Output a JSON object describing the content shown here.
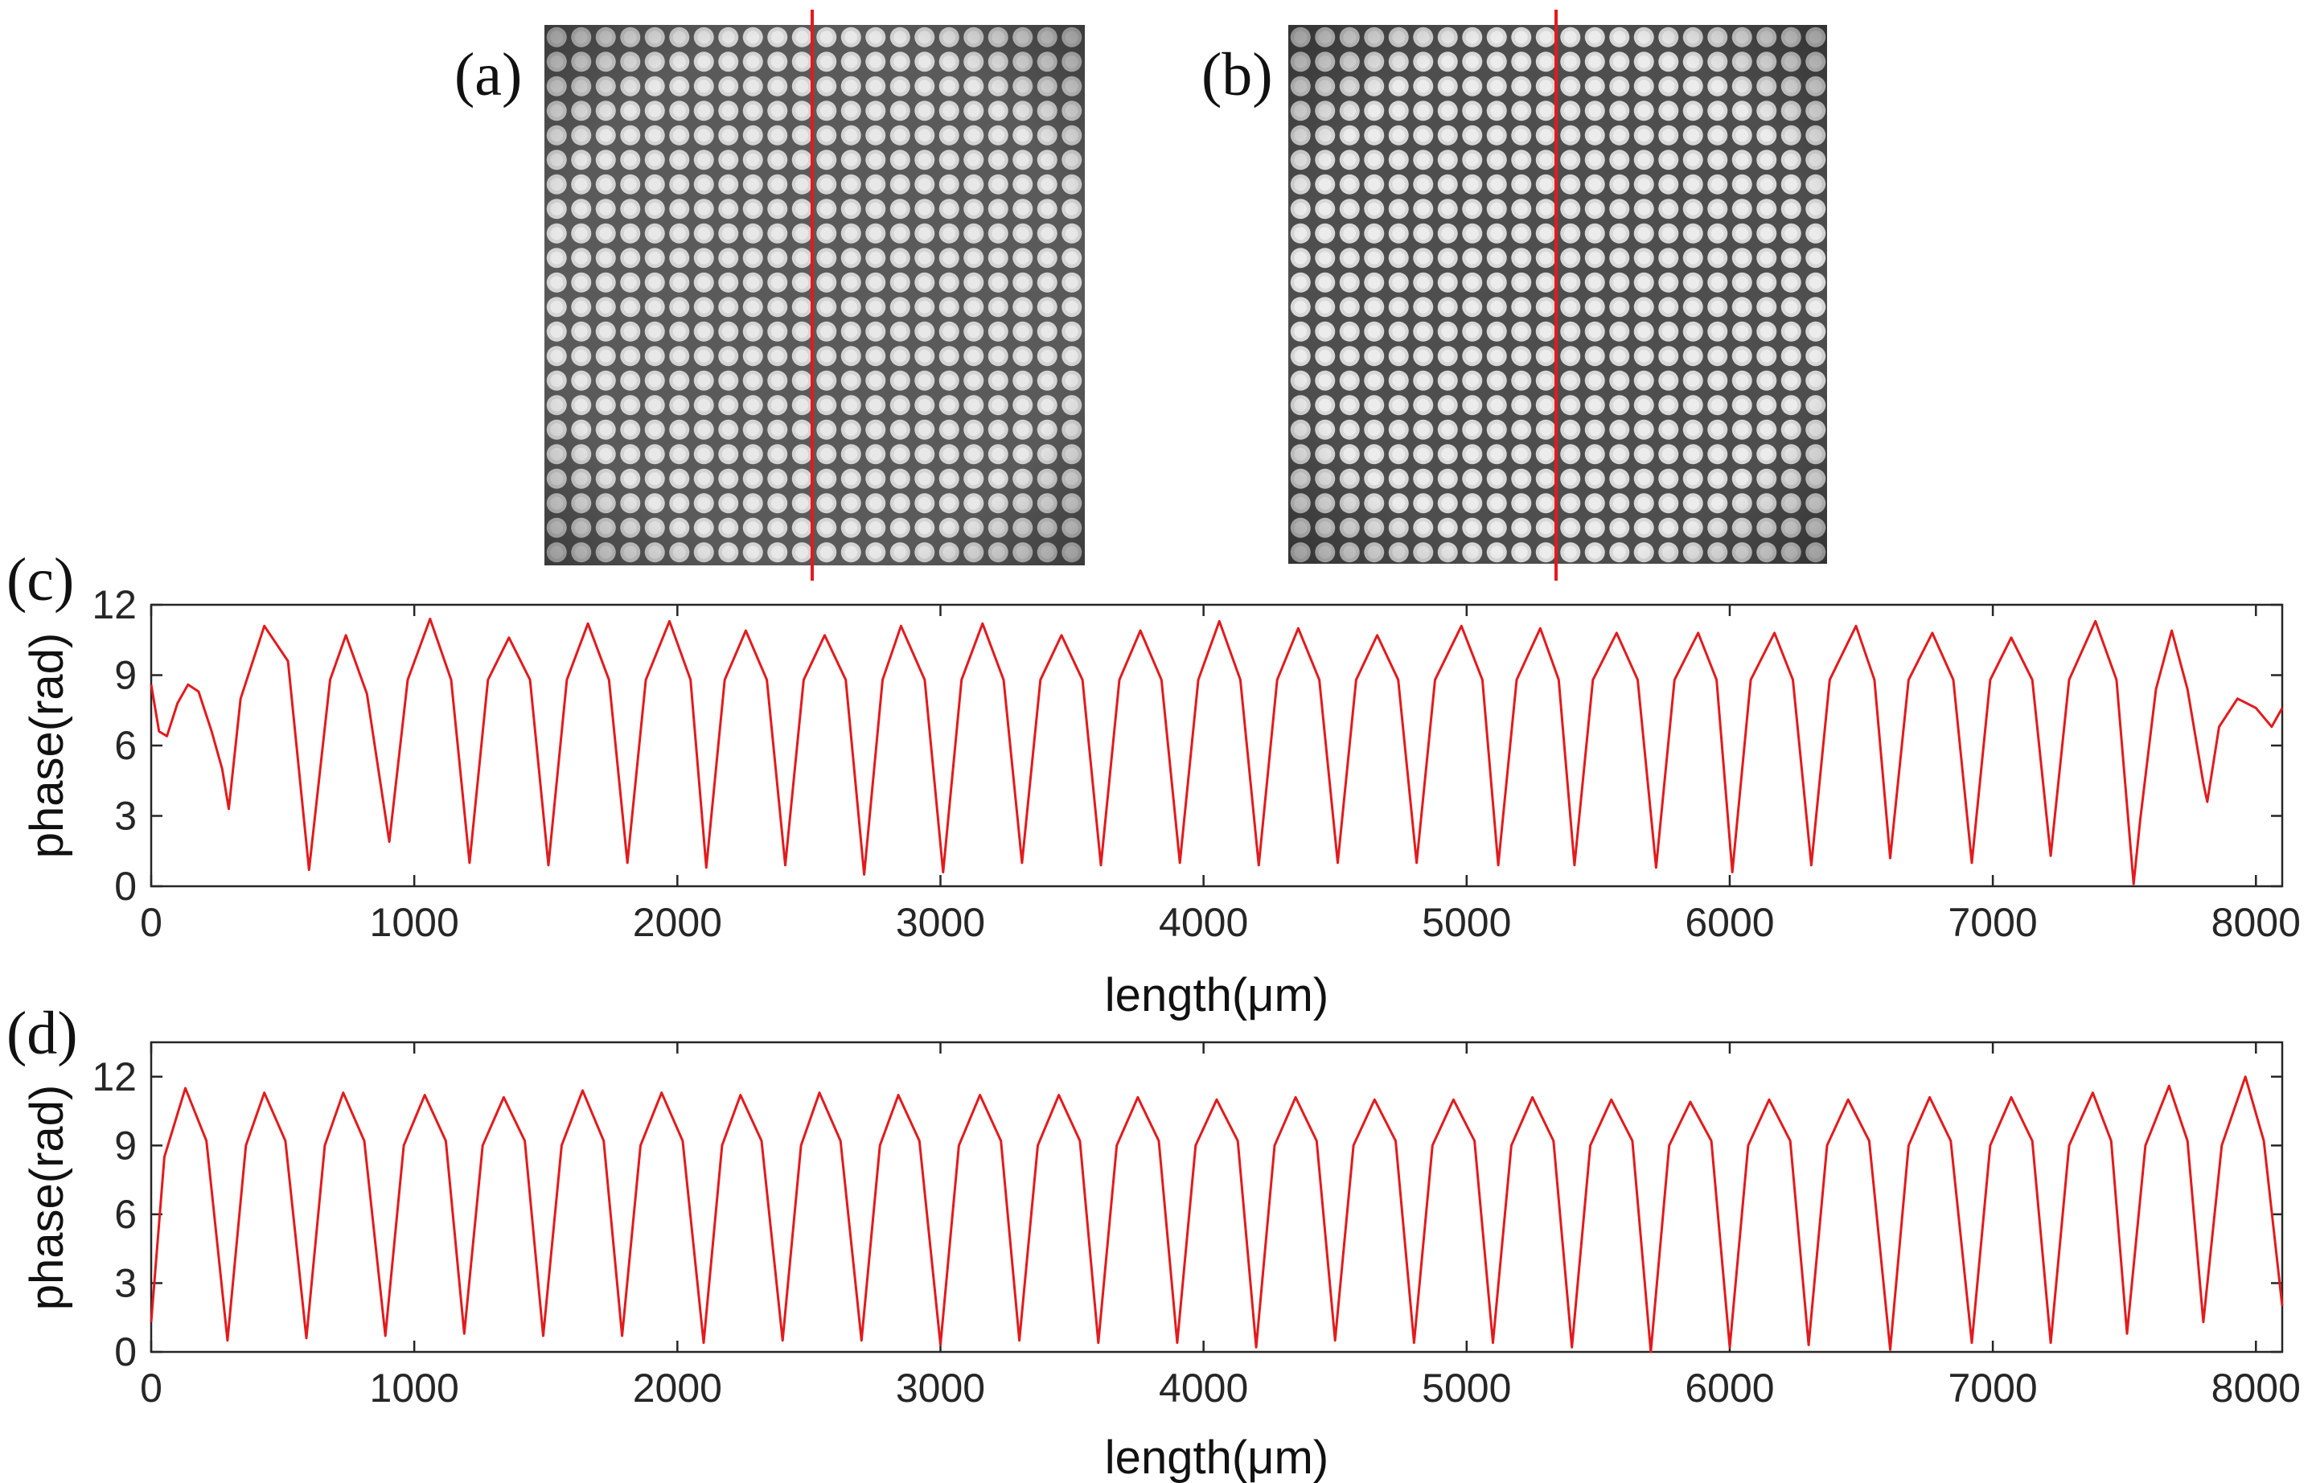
{
  "panels": {
    "a": "(a)",
    "b": "(b)",
    "c": "(c)",
    "d": "(d)"
  },
  "colors": {
    "trace": "#e31a1c",
    "axis": "#262626",
    "cut_line": "#e31a1c"
  },
  "images": [
    {
      "panel": "a",
      "description": "grayscale microlens array image with vertical red cut line",
      "grid_cells": 22
    },
    {
      "panel": "b",
      "description": "grayscale microlens array image with vertical red cut line",
      "grid_cells": 22
    }
  ],
  "chart_data": [
    {
      "panel": "c",
      "type": "line",
      "title": "",
      "xlabel": "length(μm)",
      "ylabel": "phase(rad)",
      "xlim": [
        0,
        8100
      ],
      "ylim": [
        0,
        12
      ],
      "xticks": [
        "0",
        "1000",
        "2000",
        "3000",
        "4000",
        "5000",
        "6000",
        "7000",
        "8000"
      ],
      "yticks": [
        "0",
        "3",
        "6",
        "9",
        "12"
      ],
      "series": [
        {
          "name": "phase",
          "points": [
            [
              0,
              8.6
            ],
            [
              30,
              6.6
            ],
            [
              60,
              6.4
            ],
            [
              100,
              7.8
            ],
            [
              140,
              8.6
            ],
            [
              180,
              8.3
            ],
            [
              230,
              6.6
            ],
            [
              270,
              5.0
            ],
            [
              295,
              3.3
            ],
            [
              340,
              8.0
            ],
            [
              430,
              11.1
            ],
            [
              520,
              9.6
            ],
            [
              600,
              0.7
            ],
            [
              680,
              8.8
            ],
            [
              740,
              10.7
            ],
            [
              820,
              8.2
            ],
            [
              905,
              1.9
            ],
            [
              975,
              8.8
            ],
            [
              1060,
              11.4
            ],
            [
              1140,
              8.8
            ],
            [
              1210,
              1.0
            ],
            [
              1280,
              8.8
            ],
            [
              1360,
              10.6
            ],
            [
              1440,
              8.8
            ],
            [
              1510,
              0.9
            ],
            [
              1580,
              8.8
            ],
            [
              1660,
              11.2
            ],
            [
              1740,
              8.8
            ],
            [
              1810,
              1.0
            ],
            [
              1880,
              8.8
            ],
            [
              1970,
              11.3
            ],
            [
              2050,
              8.8
            ],
            [
              2110,
              0.8
            ],
            [
              2180,
              8.8
            ],
            [
              2260,
              10.9
            ],
            [
              2340,
              8.8
            ],
            [
              2410,
              0.9
            ],
            [
              2480,
              8.8
            ],
            [
              2560,
              10.7
            ],
            [
              2640,
              8.8
            ],
            [
              2710,
              0.5
            ],
            [
              2780,
              8.8
            ],
            [
              2850,
              11.1
            ],
            [
              2940,
              8.8
            ],
            [
              3010,
              0.6
            ],
            [
              3080,
              8.8
            ],
            [
              3160,
              11.2
            ],
            [
              3240,
              8.8
            ],
            [
              3310,
              1.0
            ],
            [
              3380,
              8.8
            ],
            [
              3460,
              10.7
            ],
            [
              3540,
              8.8
            ],
            [
              3610,
              0.9
            ],
            [
              3680,
              8.8
            ],
            [
              3760,
              10.9
            ],
            [
              3840,
              8.8
            ],
            [
              3910,
              1.0
            ],
            [
              3980,
              8.8
            ],
            [
              4060,
              11.3
            ],
            [
              4140,
              8.8
            ],
            [
              4210,
              0.9
            ],
            [
              4280,
              8.8
            ],
            [
              4360,
              11.0
            ],
            [
              4440,
              8.8
            ],
            [
              4510,
              1.0
            ],
            [
              4580,
              8.8
            ],
            [
              4660,
              10.7
            ],
            [
              4740,
              8.8
            ],
            [
              4810,
              1.0
            ],
            [
              4880,
              8.8
            ],
            [
              4980,
              11.1
            ],
            [
              5060,
              8.8
            ],
            [
              5120,
              0.9
            ],
            [
              5190,
              8.8
            ],
            [
              5280,
              11.0
            ],
            [
              5350,
              8.8
            ],
            [
              5410,
              0.9
            ],
            [
              5480,
              8.8
            ],
            [
              5570,
              10.8
            ],
            [
              5650,
              8.8
            ],
            [
              5720,
              0.8
            ],
            [
              5790,
              8.8
            ],
            [
              5880,
              10.8
            ],
            [
              5950,
              8.8
            ],
            [
              6010,
              0.6
            ],
            [
              6080,
              8.8
            ],
            [
              6170,
              10.8
            ],
            [
              6240,
              8.8
            ],
            [
              6310,
              0.9
            ],
            [
              6380,
              8.8
            ],
            [
              6480,
              11.1
            ],
            [
              6550,
              8.8
            ],
            [
              6610,
              1.2
            ],
            [
              6680,
              8.8
            ],
            [
              6770,
              10.8
            ],
            [
              6850,
              8.8
            ],
            [
              6920,
              1.0
            ],
            [
              6990,
              8.8
            ],
            [
              7070,
              10.6
            ],
            [
              7150,
              8.8
            ],
            [
              7220,
              1.3
            ],
            [
              7290,
              8.8
            ],
            [
              7390,
              11.3
            ],
            [
              7470,
              8.8
            ],
            [
              7535,
              0.1
            ],
            [
              7560,
              2.8
            ],
            [
              7620,
              8.4
            ],
            [
              7680,
              10.9
            ],
            [
              7740,
              8.4
            ],
            [
              7800,
              4.4
            ],
            [
              7815,
              3.6
            ],
            [
              7860,
              6.8
            ],
            [
              7930,
              8.0
            ],
            [
              8000,
              7.6
            ],
            [
              8060,
              6.8
            ],
            [
              8100,
              7.6
            ]
          ]
        }
      ]
    },
    {
      "panel": "d",
      "type": "line",
      "title": "",
      "xlabel": "length(μm)",
      "ylabel": "phase(rad)",
      "xlim": [
        0,
        8100
      ],
      "ylim": [
        0,
        13.5
      ],
      "xticks": [
        "0",
        "1000",
        "2000",
        "3000",
        "4000",
        "5000",
        "6000",
        "7000",
        "8000"
      ],
      "yticks": [
        "0",
        "3",
        "6",
        "9",
        "12"
      ],
      "series": [
        {
          "name": "phase",
          "points": [
            [
              0,
              1.3
            ],
            [
              50,
              8.5
            ],
            [
              130,
              11.5
            ],
            [
              210,
              9.2
            ],
            [
              290,
              0.5
            ],
            [
              360,
              9.0
            ],
            [
              430,
              11.3
            ],
            [
              510,
              9.2
            ],
            [
              590,
              0.6
            ],
            [
              660,
              9.0
            ],
            [
              730,
              11.3
            ],
            [
              810,
              9.2
            ],
            [
              890,
              0.7
            ],
            [
              960,
              9.0
            ],
            [
              1040,
              11.2
            ],
            [
              1120,
              9.2
            ],
            [
              1190,
              0.8
            ],
            [
              1260,
              9.0
            ],
            [
              1340,
              11.1
            ],
            [
              1420,
              9.2
            ],
            [
              1490,
              0.7
            ],
            [
              1560,
              9.0
            ],
            [
              1640,
              11.4
            ],
            [
              1720,
              9.2
            ],
            [
              1790,
              0.7
            ],
            [
              1860,
              9.0
            ],
            [
              1940,
              11.3
            ],
            [
              2020,
              9.2
            ],
            [
              2100,
              0.4
            ],
            [
              2170,
              9.0
            ],
            [
              2240,
              11.2
            ],
            [
              2320,
              9.2
            ],
            [
              2400,
              0.5
            ],
            [
              2470,
              9.0
            ],
            [
              2540,
              11.3
            ],
            [
              2620,
              9.2
            ],
            [
              2700,
              0.5
            ],
            [
              2770,
              9.0
            ],
            [
              2840,
              11.2
            ],
            [
              2920,
              9.2
            ],
            [
              3000,
              0.3
            ],
            [
              3070,
              9.0
            ],
            [
              3150,
              11.2
            ],
            [
              3230,
              9.2
            ],
            [
              3300,
              0.5
            ],
            [
              3370,
              9.0
            ],
            [
              3450,
              11.2
            ],
            [
              3530,
              9.2
            ],
            [
              3600,
              0.4
            ],
            [
              3670,
              9.0
            ],
            [
              3750,
              11.1
            ],
            [
              3830,
              9.2
            ],
            [
              3900,
              0.4
            ],
            [
              3970,
              9.0
            ],
            [
              4050,
              11.0
            ],
            [
              4130,
              9.2
            ],
            [
              4200,
              0.2
            ],
            [
              4270,
              9.0
            ],
            [
              4350,
              11.1
            ],
            [
              4430,
              9.2
            ],
            [
              4500,
              0.5
            ],
            [
              4570,
              9.0
            ],
            [
              4650,
              11.0
            ],
            [
              4730,
              9.2
            ],
            [
              4800,
              0.4
            ],
            [
              4870,
              9.0
            ],
            [
              4950,
              11.0
            ],
            [
              5030,
              9.2
            ],
            [
              5100,
              0.4
            ],
            [
              5170,
              9.0
            ],
            [
              5250,
              11.1
            ],
            [
              5330,
              9.2
            ],
            [
              5400,
              0.2
            ],
            [
              5470,
              9.0
            ],
            [
              5550,
              11.0
            ],
            [
              5630,
              9.2
            ],
            [
              5700,
              0.0
            ],
            [
              5770,
              9.0
            ],
            [
              5850,
              10.9
            ],
            [
              5930,
              9.2
            ],
            [
              6000,
              0.2
            ],
            [
              6070,
              9.0
            ],
            [
              6150,
              11.0
            ],
            [
              6230,
              9.2
            ],
            [
              6300,
              0.3
            ],
            [
              6370,
              9.0
            ],
            [
              6450,
              11.0
            ],
            [
              6530,
              9.2
            ],
            [
              6610,
              0.1
            ],
            [
              6680,
              9.0
            ],
            [
              6760,
              11.1
            ],
            [
              6840,
              9.2
            ],
            [
              6920,
              0.4
            ],
            [
              6990,
              9.0
            ],
            [
              7070,
              11.1
            ],
            [
              7150,
              9.2
            ],
            [
              7220,
              0.4
            ],
            [
              7290,
              9.0
            ],
            [
              7380,
              11.3
            ],
            [
              7450,
              9.2
            ],
            [
              7510,
              0.8
            ],
            [
              7580,
              9.0
            ],
            [
              7670,
              11.6
            ],
            [
              7740,
              9.2
            ],
            [
              7800,
              1.3
            ],
            [
              7870,
              9.0
            ],
            [
              7960,
              12.0
            ],
            [
              8030,
              9.2
            ],
            [
              8100,
              2.0
            ]
          ]
        }
      ]
    }
  ]
}
